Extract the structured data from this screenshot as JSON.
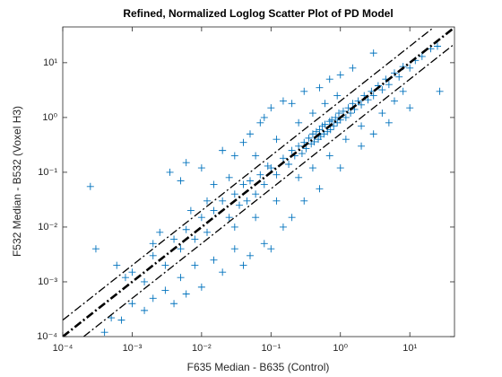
{
  "chart_data": {
    "type": "scatter",
    "title": "Refined, Normalized Loglog Scatter Plot of PD Model",
    "xlabel": "F635 Median - B635 (Control)",
    "ylabel": "F532 Median - B532 (Voxel H3)",
    "xscale": "log",
    "yscale": "log",
    "marker": "+",
    "color": "#0072bd",
    "xlim": [
      0.0001,
      44
    ],
    "ylim": [
      0.0001,
      45
    ],
    "xticks": [
      {
        "value": 0.0001,
        "label": "10⁻⁴"
      },
      {
        "value": 0.001,
        "label": "10⁻³"
      },
      {
        "value": 0.01,
        "label": "10⁻²"
      },
      {
        "value": 0.1,
        "label": "10⁻¹"
      },
      {
        "value": 1,
        "label": "10⁰"
      },
      {
        "value": 10,
        "label": "10¹"
      }
    ],
    "yticks": [
      {
        "value": 0.0001,
        "label": "10⁻⁴"
      },
      {
        "value": 0.001,
        "label": "10⁻³"
      },
      {
        "value": 0.01,
        "label": "10⁻²"
      },
      {
        "value": 0.1,
        "label": "10⁻¹"
      },
      {
        "value": 1,
        "label": "10⁰"
      },
      {
        "value": 10,
        "label": "10¹"
      }
    ],
    "x": [
      0.1,
      0.12,
      0.15,
      0.18,
      0.2,
      0.22,
      0.25,
      0.28,
      0.3,
      0.32,
      0.35,
      0.38,
      0.4,
      0.42,
      0.45,
      0.48,
      0.5,
      0.52,
      0.55,
      0.58,
      0.6,
      0.65,
      0.7,
      0.72,
      0.75,
      0.8,
      0.85,
      0.9,
      0.95,
      1.0,
      1.1,
      1.2,
      1.3,
      1.4,
      1.5,
      1.6,
      1.8,
      2.0,
      2.2,
      2.5,
      2.8,
      3.0,
      3.5,
      4.0,
      4.5,
      5,
      6,
      7,
      8,
      10,
      12,
      15,
      20,
      25,
      27,
      0.05,
      0.06,
      0.07,
      0.08,
      0.09,
      0.03,
      0.035,
      0.04,
      0.045,
      0.02,
      0.025,
      0.015,
      0.012,
      0.01,
      0.008,
      0.006,
      0.005,
      0.004,
      0.003,
      0.002,
      0.0015,
      0.00025,
      0.0035,
      0.005,
      0.006,
      0.01,
      0.02,
      0.03,
      0.05,
      0.04,
      0.07,
      0.1,
      0.08,
      0.15,
      0.2,
      0.3,
      0.5,
      0.7,
      1,
      1.5,
      3,
      0.5,
      0.3,
      0.2,
      1,
      2,
      3,
      5,
      10,
      0.15,
      0.1,
      0.05,
      0.08,
      0.04,
      0.03,
      0.02,
      0.015,
      0.01,
      0.008,
      0.006,
      0.005,
      0.004,
      0.003,
      0.002,
      0.0015,
      0.001,
      0.0007,
      0.0005,
      0.0004,
      0.001,
      0.0008,
      0.0003,
      0.0006,
      0.002,
      0.0025,
      0.007,
      0.012,
      0.015,
      0.025,
      0.06,
      0.12,
      0.25,
      0.4,
      0.6,
      0.9,
      0.03,
      0.06,
      0.12,
      0.25,
      0.4,
      0.7,
      1.2,
      2,
      4,
      6,
      8
    ],
    "values": [
      0.12,
      0.09,
      0.18,
      0.14,
      0.25,
      0.2,
      0.3,
      0.22,
      0.35,
      0.27,
      0.42,
      0.33,
      0.5,
      0.36,
      0.55,
      0.4,
      0.6,
      0.45,
      0.7,
      0.5,
      0.75,
      0.55,
      0.85,
      0.6,
      0.9,
      0.7,
      1.0,
      0.8,
      1.2,
      0.9,
      1.3,
      1.0,
      1.5,
      1.2,
      1.8,
      1.4,
      2.0,
      1.7,
      2.5,
      2.1,
      3.0,
      2.5,
      3.8,
      3.2,
      5.0,
      4,
      6.5,
      5.5,
      8.5,
      8,
      11,
      13,
      18,
      20,
      3,
      0.07,
      0.04,
      0.09,
      0.06,
      0.13,
      0.04,
      0.025,
      0.06,
      0.03,
      0.03,
      0.015,
      0.02,
      0.008,
      0.015,
      0.006,
      0.009,
      0.004,
      0.006,
      0.002,
      0.003,
      0.001,
      0.055,
      0.1,
      0.07,
      0.15,
      0.12,
      0.25,
      0.2,
      0.5,
      0.35,
      0.8,
      1.5,
      1.0,
      2.0,
      1.8,
      3.0,
      3.5,
      5,
      6,
      8,
      15,
      0.05,
      0.03,
      0.015,
      0.12,
      0.3,
      0.5,
      0.8,
      1.5,
      0.01,
      0.004,
      0.003,
      0.005,
      0.002,
      0.004,
      0.0015,
      0.0025,
      0.0008,
      0.002,
      0.0006,
      0.0012,
      0.0004,
      0.0007,
      0.0005,
      0.0003,
      0.0004,
      0.0002,
      0.00022,
      0.00012,
      0.0015,
      0.0012,
      0.004,
      0.002,
      0.005,
      0.008,
      0.02,
      0.03,
      0.06,
      0.08,
      0.2,
      0.4,
      0.8,
      1.2,
      1.8,
      2.5,
      0.01,
      0.015,
      0.03,
      0.08,
      0.12,
      0.2,
      0.4,
      0.7,
      1.2,
      2,
      3
    ],
    "lines": [
      {
        "x": [
          0.0001,
          22
        ],
        "values": [
          0.0002,
          44
        ],
        "color": "#000000",
        "width": 1.3
      },
      {
        "x": [
          0.0001,
          44
        ],
        "values": [
          0.0001,
          44
        ],
        "color": "#000000",
        "width": 2.6
      },
      {
        "x": [
          0.0002,
          44
        ],
        "values": [
          0.0001,
          22
        ],
        "color": "#000000",
        "width": 1.3
      }
    ]
  }
}
